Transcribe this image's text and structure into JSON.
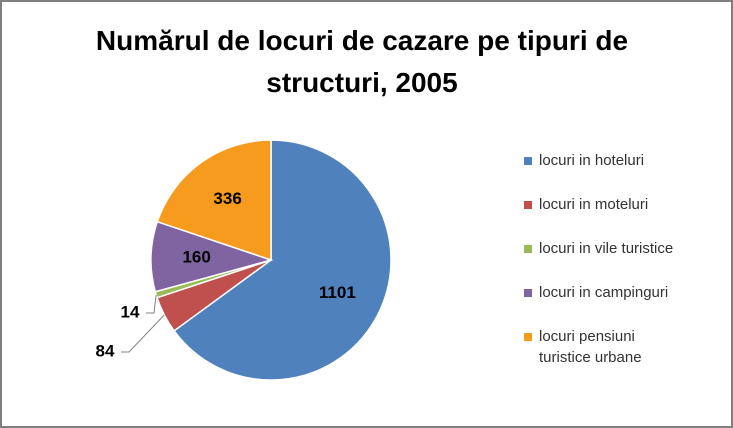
{
  "chart_data": {
    "type": "pie",
    "title": "Numărul de locuri de cazare pe tipuri de structuri, 2005",
    "categories": [
      "locuri in hoteluri",
      "locuri in moteluri",
      "locuri in vile turistice",
      "locuri in campinguri",
      "locuri pensiuni turistice urbane"
    ],
    "values": [
      1101,
      84,
      14,
      160,
      336
    ],
    "colors": [
      "#4f81bd",
      "#c0504d",
      "#9bbb59",
      "#8064a2",
      "#f79b1e"
    ],
    "legend": "right"
  }
}
